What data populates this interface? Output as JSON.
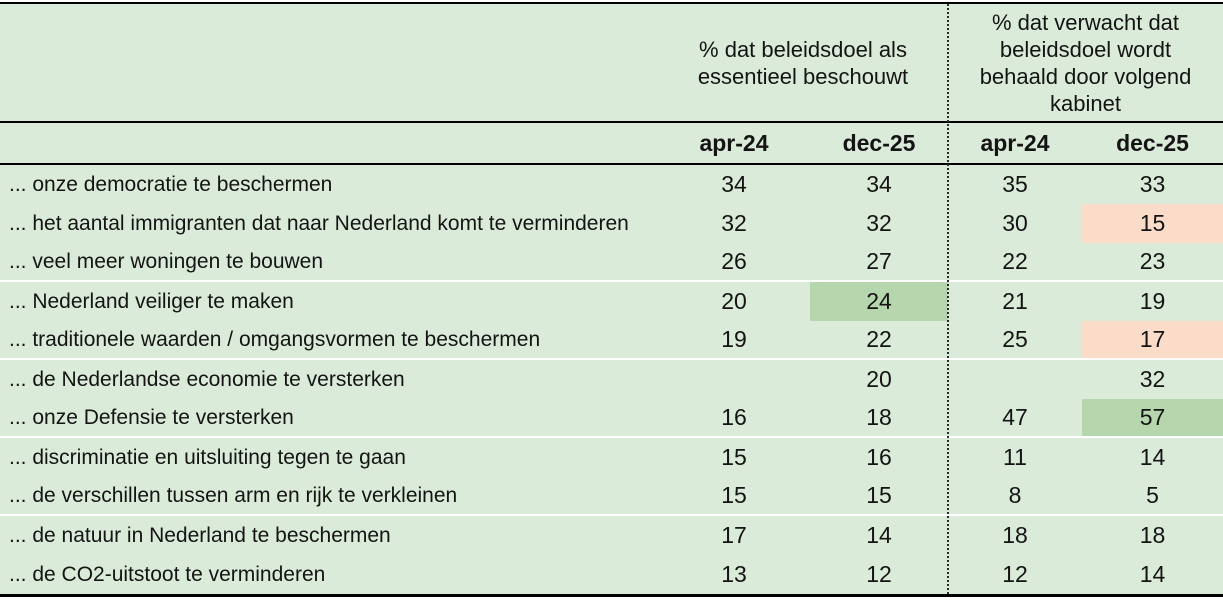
{
  "colors": {
    "base_green": "#dbebd9",
    "highlight_green": "#b6d7ad",
    "highlight_pink": "#fadcc9",
    "border_black": "#000000",
    "separator_white": "#ffffff"
  },
  "table": {
    "group_headers": [
      "% dat beleidsdoel als essentieel beschouwt",
      "% dat verwacht dat beleidsdoel wordt behaald door volgend kabinet"
    ],
    "col_headers": [
      "apr-24",
      "dec-25",
      "apr-24",
      "dec-25"
    ],
    "rows": [
      {
        "label": "... onze democratie te beschermen",
        "values": [
          "34",
          "34",
          "35",
          "33"
        ],
        "hl": [
          null,
          null,
          null,
          null
        ],
        "sep": false
      },
      {
        "label": "... het aantal immigranten dat naar Nederland komt te verminderen",
        "values": [
          "32",
          "32",
          "30",
          "15"
        ],
        "hl": [
          null,
          null,
          null,
          "pink"
        ],
        "sep": false
      },
      {
        "label": "... veel meer woningen te bouwen",
        "values": [
          "26",
          "27",
          "22",
          "23"
        ],
        "hl": [
          null,
          null,
          null,
          null
        ],
        "sep": true
      },
      {
        "label": "... Nederland veiliger te maken",
        "values": [
          "20",
          "24",
          "21",
          "19"
        ],
        "hl": [
          null,
          "green",
          null,
          null
        ],
        "sep": false
      },
      {
        "label": "... traditionele waarden / omgangsvormen te beschermen",
        "values": [
          "19",
          "22",
          "25",
          "17"
        ],
        "hl": [
          null,
          null,
          null,
          "pink"
        ],
        "sep": true
      },
      {
        "label": "... de Nederlandse economie te versterken",
        "values": [
          "",
          "20",
          "",
          "32"
        ],
        "hl": [
          null,
          null,
          null,
          null
        ],
        "sep": false
      },
      {
        "label": "... onze Defensie te versterken",
        "values": [
          "16",
          "18",
          "47",
          "57"
        ],
        "hl": [
          null,
          null,
          null,
          "green"
        ],
        "sep": true
      },
      {
        "label": "... discriminatie en uitsluiting tegen te gaan",
        "values": [
          "15",
          "16",
          "11",
          "14"
        ],
        "hl": [
          null,
          null,
          null,
          null
        ],
        "sep": false
      },
      {
        "label": "... de verschillen tussen arm en rijk te verkleinen",
        "values": [
          "15",
          "15",
          "8",
          "5"
        ],
        "hl": [
          null,
          null,
          null,
          null
        ],
        "sep": true
      },
      {
        "label": "... de natuur in Nederland te beschermen",
        "values": [
          "17",
          "14",
          "18",
          "18"
        ],
        "hl": [
          null,
          null,
          null,
          null
        ],
        "sep": false
      },
      {
        "label": "... de CO2-uitstoot te verminderen",
        "values": [
          "13",
          "12",
          "12",
          "14"
        ],
        "hl": [
          null,
          null,
          null,
          null
        ],
        "sep": false
      }
    ]
  },
  "chart_data": {
    "type": "table",
    "column_groups": [
      {
        "label": "% dat beleidsdoel als essentieel beschouwt",
        "columns": [
          "apr-24",
          "dec-25"
        ]
      },
      {
        "label": "% dat verwacht dat beleidsdoel wordt behaald door volgend kabinet",
        "columns": [
          "apr-24",
          "dec-25"
        ]
      }
    ],
    "rows": [
      {
        "label": "... onze democratie te beschermen",
        "essentieel": {
          "apr-24": 34,
          "dec-25": 34
        },
        "verwacht_behaald": {
          "apr-24": 35,
          "dec-25": 33
        }
      },
      {
        "label": "... het aantal immigranten dat naar Nederland komt te verminderen",
        "essentieel": {
          "apr-24": 32,
          "dec-25": 32
        },
        "verwacht_behaald": {
          "apr-24": 30,
          "dec-25": 15
        }
      },
      {
        "label": "... veel meer woningen te bouwen",
        "essentieel": {
          "apr-24": 26,
          "dec-25": 27
        },
        "verwacht_behaald": {
          "apr-24": 22,
          "dec-25": 23
        }
      },
      {
        "label": "... Nederland veiliger te maken",
        "essentieel": {
          "apr-24": 20,
          "dec-25": 24
        },
        "verwacht_behaald": {
          "apr-24": 21,
          "dec-25": 19
        }
      },
      {
        "label": "... traditionele waarden / omgangsvormen te beschermen",
        "essentieel": {
          "apr-24": 19,
          "dec-25": 22
        },
        "verwacht_behaald": {
          "apr-24": 25,
          "dec-25": 17
        }
      },
      {
        "label": "... de Nederlandse economie te versterken",
        "essentieel": {
          "apr-24": null,
          "dec-25": 20
        },
        "verwacht_behaald": {
          "apr-24": null,
          "dec-25": 32
        }
      },
      {
        "label": "... onze Defensie te versterken",
        "essentieel": {
          "apr-24": 16,
          "dec-25": 18
        },
        "verwacht_behaald": {
          "apr-24": 47,
          "dec-25": 57
        }
      },
      {
        "label": "... discriminatie en uitsluiting tegen te gaan",
        "essentieel": {
          "apr-24": 15,
          "dec-25": 16
        },
        "verwacht_behaald": {
          "apr-24": 11,
          "dec-25": 14
        }
      },
      {
        "label": "... de verschillen tussen arm en rijk te verkleinen",
        "essentieel": {
          "apr-24": 15,
          "dec-25": 15
        },
        "verwacht_behaald": {
          "apr-24": 8,
          "dec-25": 5
        }
      },
      {
        "label": "... de natuur in Nederland te beschermen",
        "essentieel": {
          "apr-24": 17,
          "dec-25": 14
        },
        "verwacht_behaald": {
          "apr-24": 18,
          "dec-25": 18
        }
      },
      {
        "label": "... de CO2-uitstoot te verminderen",
        "essentieel": {
          "apr-24": 13,
          "dec-25": 12
        },
        "verwacht_behaald": {
          "apr-24": 12,
          "dec-25": 14
        }
      }
    ],
    "highlights": [
      {
        "row": "... het aantal immigranten dat naar Nederland komt te verminderen",
        "group": "verwacht_behaald",
        "column": "dec-25",
        "value": 15,
        "color": "pink"
      },
      {
        "row": "... Nederland veiliger te maken",
        "group": "essentieel",
        "column": "dec-25",
        "value": 24,
        "color": "green"
      },
      {
        "row": "... traditionele waarden / omgangsvormen te beschermen",
        "group": "verwacht_behaald",
        "column": "dec-25",
        "value": 17,
        "color": "pink"
      },
      {
        "row": "... onze Defensie te versterken",
        "group": "verwacht_behaald",
        "column": "dec-25",
        "value": 57,
        "color": "green"
      }
    ],
    "layout": {
      "divider": "dotted vertical line between column groups",
      "grid": "white separators after rows 3, 5, 7, 9"
    }
  }
}
